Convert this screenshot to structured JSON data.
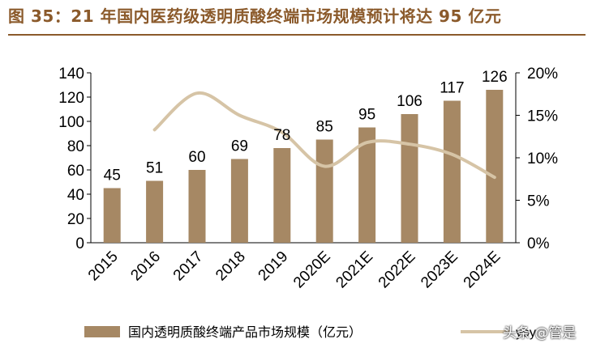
{
  "title": "图 35：21 年国内医药级透明质酸终端市场规模预计将达 95 亿元",
  "watermark": "头条 @管是",
  "chart_data": {
    "type": "bar",
    "categories": [
      "2015",
      "2016",
      "2017",
      "2018",
      "2019",
      "2020E",
      "2021E",
      "2022E",
      "2023E",
      "2024E"
    ],
    "series": [
      {
        "name": "国内透明质酸终端产品市场规模（亿元）",
        "type": "bar",
        "axis": "left",
        "values": [
          45,
          51,
          60,
          69,
          78,
          85,
          95,
          106,
          117,
          126
        ]
      },
      {
        "name": "yoy",
        "type": "line",
        "axis": "right",
        "values": [
          null,
          13.3,
          17.6,
          15.0,
          13.0,
          9.0,
          11.8,
          11.6,
          10.4,
          7.7
        ]
      }
    ],
    "y_left": {
      "min": 0,
      "max": 140,
      "ticks": [
        "0",
        "20",
        "40",
        "60",
        "80",
        "100",
        "120",
        "140"
      ]
    },
    "y_right": {
      "min": 0,
      "max": 20,
      "ticks": [
        "0%",
        "5%",
        "10%",
        "15%",
        "20%"
      ]
    },
    "legend": {
      "position": "bottom",
      "bar_label": "国内透明质酸终端产品市场规模（亿元）",
      "line_label": "yoy"
    },
    "colors": {
      "bar": "#A68864",
      "line": "#D6C4A6",
      "title": "#8B5A2B",
      "axis": "#000000"
    }
  }
}
